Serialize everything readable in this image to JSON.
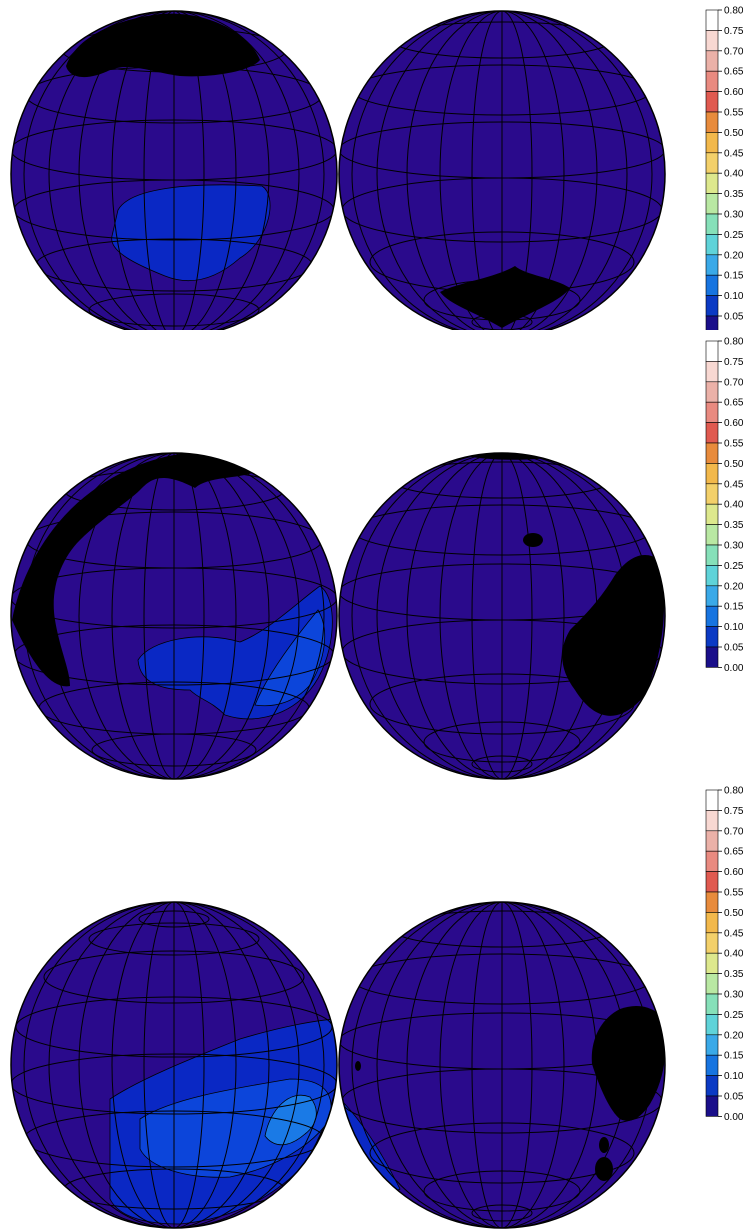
{
  "legend": {
    "labels": [
      "0.80",
      "0.75",
      "0.70",
      "0.65",
      "0.60",
      "0.55",
      "0.50",
      "0.45",
      "0.40",
      "0.35",
      "0.30",
      "0.25",
      "0.20",
      "0.15",
      "0.10",
      "0.05",
      "0.00"
    ],
    "colors": [
      "#ffffff",
      "#f8d8d2",
      "#ebb1a8",
      "#e98a80",
      "#e05a50",
      "#e88b3c",
      "#f2b84b",
      "#f3d06a",
      "#dde88d",
      "#b9e8a3",
      "#86e0b9",
      "#5fd3d9",
      "#3aa9e8",
      "#1774e0",
      "#0b3ac4",
      "#1a0f8a",
      "#2b0a8a"
    ]
  },
  "globe_colors": {
    "ocean": "#2a0a8c",
    "level_010": "#0a28c4",
    "level_015": "#0c45da",
    "level_020": "#1a7ae6",
    "land": "#000000",
    "grid": "#000000"
  },
  "panels": [
    {
      "id": "panel-1"
    },
    {
      "id": "panel-2"
    },
    {
      "id": "panel-3"
    }
  ]
}
